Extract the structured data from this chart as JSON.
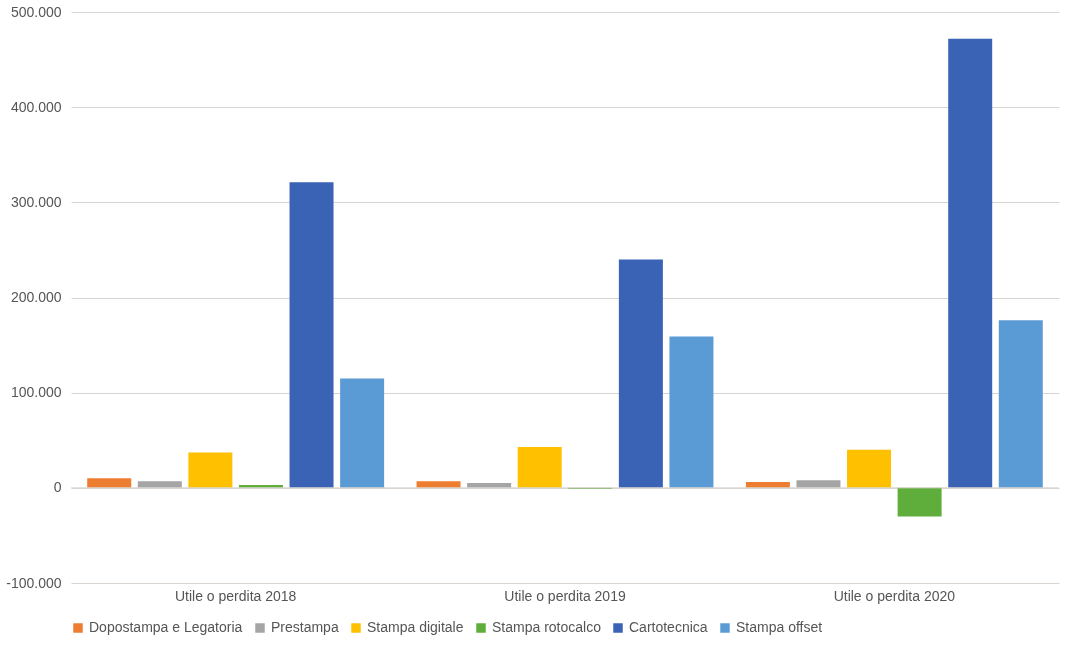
{
  "chart_data": {
    "type": "bar",
    "categories": [
      "Utile o perdita 2018",
      "Utile o perdita 2019",
      "Utile o perdita 2020"
    ],
    "series": [
      {
        "name": "Dopostampa e Legatoria",
        "color": "#ed7d31",
        "values": [
          10000,
          7000,
          6000
        ]
      },
      {
        "name": "Prestampa",
        "color": "#a5a5a5",
        "values": [
          7000,
          5000,
          8000
        ]
      },
      {
        "name": "Stampa digitale",
        "color": "#ffc000",
        "values": [
          37000,
          43000,
          40000
        ]
      },
      {
        "name": "Stampa rotocalco",
        "color": "#5fae3c",
        "values": [
          3000,
          -1000,
          -30000
        ]
      },
      {
        "name": "Cartotecnica",
        "color": "#3a62b5",
        "values": [
          321000,
          240000,
          472000
        ]
      },
      {
        "name": "Stampa offset",
        "color": "#5b9bd5",
        "values": [
          115000,
          159000,
          176000
        ]
      }
    ],
    "ylim": [
      -100000,
      500000
    ],
    "yticks": [
      {
        "value": -100000,
        "label": "-100.000"
      },
      {
        "value": 0,
        "label": "0"
      },
      {
        "value": 100000,
        "label": "100.000"
      },
      {
        "value": 200000,
        "label": "200.000"
      },
      {
        "value": 300000,
        "label": "300.000"
      },
      {
        "value": 400000,
        "label": "400.000"
      },
      {
        "value": 500000,
        "label": "500.000"
      }
    ],
    "grid": "y",
    "legend": "bottom"
  }
}
